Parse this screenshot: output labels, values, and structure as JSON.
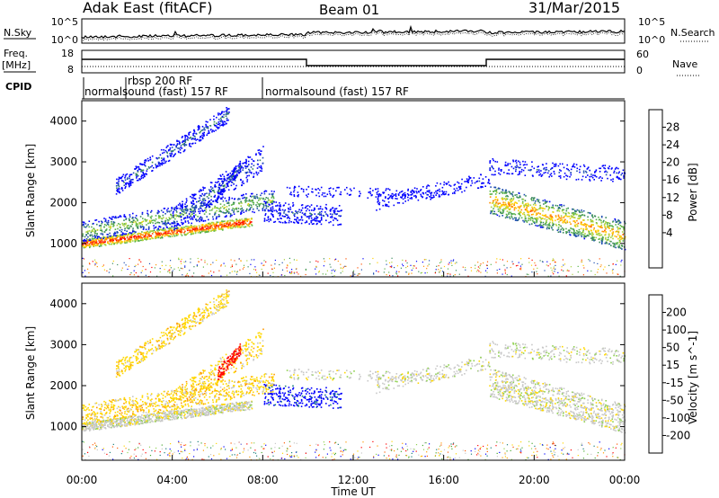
{
  "header": {
    "site": "Adak East (fitACF)",
    "beam": "Beam 01",
    "date": "31/Mar/2015"
  },
  "colors": {
    "power": [
      "#0000ff",
      "#1f4fb0",
      "#3a8a5a",
      "#59b24a",
      "#a8d23c",
      "#ffd000",
      "#ff9000",
      "#ff5000",
      "#ff0000"
    ],
    "velocity": [
      "#ff0000",
      "#ff5a00",
      "#ff9a00",
      "#ffd700",
      "#c8c8c8",
      "#8fd14f",
      "#4aa832",
      "#1a7f7a",
      "#0000ff"
    ]
  },
  "chart_data": [
    {
      "type": "line",
      "panel": "noise",
      "ylabel": "N.Sky",
      "ylabel_right": "N.Search",
      "yticks_left": [
        "10^5",
        "10^0"
      ],
      "yticks_right": [
        "10^5",
        "10^0"
      ]
    },
    {
      "type": "line",
      "panel": "frequency",
      "ylabel": "Freq.",
      "yunit": "[MHz]",
      "yticks_left": [
        18,
        8
      ],
      "ylabel_right": "Nave",
      "yticks_right": [
        60,
        0
      ]
    },
    {
      "type": "table",
      "panel": "cpid",
      "label": "CPID",
      "entries": [
        {
          "start": "00:00",
          "text": "normalsound (fast) 157 RF"
        },
        {
          "start": "02:00",
          "text": "rbsp 200 RF"
        },
        {
          "start": "08:00",
          "text": "normalsound (fast) 157 RF"
        }
      ]
    },
    {
      "type": "heatmap",
      "panel": "power",
      "ylabel": "Slant Range [km]",
      "yticks": [
        1000,
        2000,
        3000,
        4000
      ],
      "ylim": [
        180,
        4500
      ],
      "xlim": [
        "00:00",
        "24:00"
      ],
      "colorbar_label": "Power [dB]",
      "colorbar_ticks": [
        28,
        24,
        20,
        16,
        12,
        8,
        4
      ]
    },
    {
      "type": "heatmap",
      "panel": "velocity",
      "ylabel": "Slant Range [km]",
      "yticks": [
        1000,
        2000,
        3000,
        4000
      ],
      "ylim": [
        180,
        4500
      ],
      "xlabel": "Time UT",
      "xticks": [
        "00:00",
        "04:00",
        "08:00",
        "12:00",
        "16:00",
        "20:00",
        "00:00"
      ],
      "colorbar_label": "Velocity [m s^-1]",
      "colorbar_ticks": [
        200,
        100,
        50,
        15,
        -15,
        -50,
        -100,
        -200
      ]
    }
  ]
}
